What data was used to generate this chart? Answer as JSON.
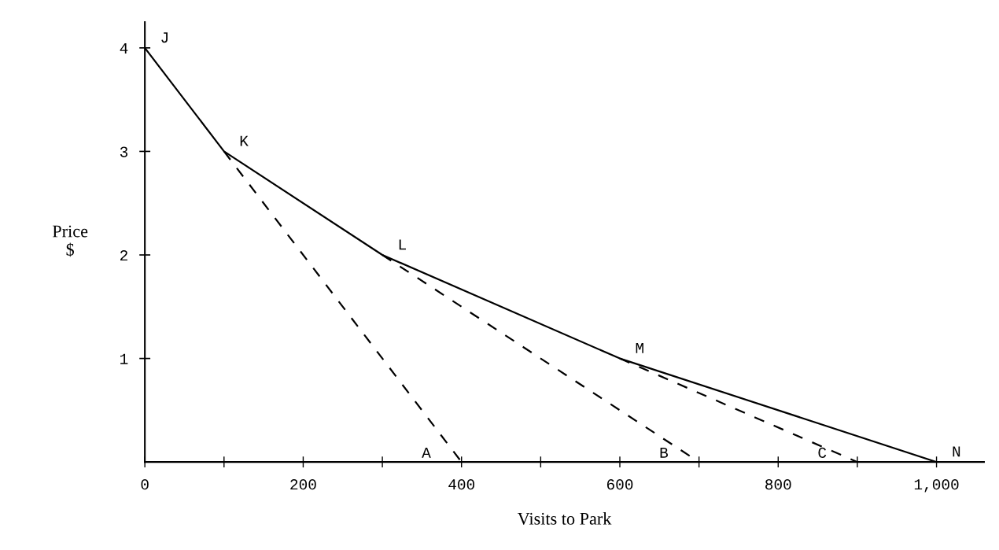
{
  "chart_data": {
    "type": "line",
    "xlabel": "Visits to Park",
    "ylabel": "Price\n$",
    "xlim": [
      0,
      1060
    ],
    "ylim": [
      0,
      4.25
    ],
    "xticks": [
      0,
      {
        "value": 100,
        "label": null
      },
      200,
      {
        "value": 300,
        "label": null
      },
      400,
      {
        "value": 500,
        "label": null
      },
      600,
      {
        "value": 700,
        "label": null
      },
      800,
      {
        "value": 900,
        "label": null
      },
      {
        "value": 1000,
        "label": "1,000"
      }
    ],
    "yticks": [
      1,
      2,
      3,
      4
    ],
    "grid": false,
    "legend": false,
    "marker": "none",
    "series": [
      {
        "color": "#000000",
        "line_style": "solid",
        "x": [
          0,
          100,
          300,
          600,
          1000
        ],
        "values": [
          4,
          3,
          2,
          1,
          0
        ]
      },
      {
        "color": "#000000",
        "line_style": "dashed",
        "x": [
          100,
          400
        ],
        "values": [
          3,
          0
        ]
      },
      {
        "color": "#000000",
        "line_style": "dashed",
        "x": [
          300,
          700
        ],
        "values": [
          2,
          0
        ]
      },
      {
        "color": "#000000",
        "line_style": "dashed",
        "x": [
          600,
          900
        ],
        "values": [
          1,
          0
        ]
      }
    ],
    "annotations": [
      {
        "text": "J",
        "x": 0,
        "y": 4
      },
      {
        "text": "K",
        "x": 100,
        "y": 3
      },
      {
        "text": "L",
        "x": 300,
        "y": 2
      },
      {
        "text": "M",
        "x": 600,
        "y": 1
      },
      {
        "text": "A",
        "x": 400,
        "y": 0
      },
      {
        "text": "B",
        "x": 700,
        "y": 0
      },
      {
        "text": "C",
        "x": 900,
        "y": 0
      },
      {
        "text": "N",
        "x": 1000,
        "y": 0
      }
    ]
  }
}
